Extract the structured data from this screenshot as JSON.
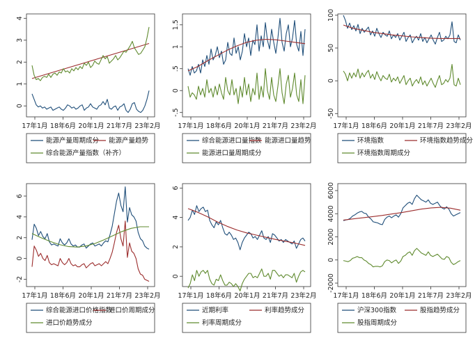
{
  "colors": {
    "navy": "#1f4e79",
    "maroon": "#9b2c2c",
    "olive": "#5f8a2e",
    "frame": "#333333"
  },
  "chart_data": [
    {
      "type": "line",
      "x_labels": [
        "17年1月",
        "18年6月",
        "20年1月",
        "21年7月",
        "23年2月"
      ],
      "ylim": [
        -0.5,
        4.2
      ],
      "yticks": [
        "0",
        "1",
        "2",
        "3",
        "4"
      ],
      "legend": [
        "能源产量周期成分",
        "能源产量趋势",
        "综合能源产量指数（补齐）"
      ],
      "series": [
        {
          "name": "能源产量周期成分",
          "color": "navy",
          "values": [
            0.55,
            0.3,
            0.05,
            -0.05,
            0.0,
            -0.1,
            -0.05,
            -0.15,
            -0.1,
            -0.05,
            -0.2,
            -0.15,
            -0.1,
            -0.05,
            -0.15,
            -0.2,
            -0.1,
            0.05,
            0.0,
            -0.1,
            -0.05,
            -0.15,
            -0.1,
            0.0,
            0.05,
            -0.2,
            -0.1,
            -0.05,
            0.1,
            -0.05,
            -0.1,
            -0.15,
            0.0,
            0.05,
            0.2,
            0.05,
            0.3,
            -0.1,
            -0.15,
            -0.05,
            0.0,
            -0.2,
            -0.05,
            0.0,
            0.1,
            -0.2,
            -0.3,
            -0.15,
            0.1,
            0.15,
            -0.15,
            -0.25,
            -0.3,
            -0.2,
            0.0,
            0.3,
            0.7
          ]
        },
        {
          "name": "能源产量趋势",
          "color": "maroon",
          "values": [
            1.25,
            2.85
          ]
        },
        {
          "name": "综合能源产量指数（补齐）",
          "color": "olive",
          "values": [
            1.85,
            1.4,
            1.2,
            1.25,
            1.15,
            1.3,
            1.35,
            1.3,
            1.45,
            1.3,
            1.45,
            1.5,
            1.4,
            1.55,
            1.5,
            1.7,
            1.55,
            1.6,
            1.5,
            1.7,
            1.6,
            1.75,
            1.65,
            1.8,
            1.7,
            1.95,
            1.85,
            2.0,
            1.75,
            1.85,
            2.05,
            1.95,
            1.9,
            2.1,
            2.3,
            2.15,
            2.25,
            1.95,
            2.05,
            2.15,
            2.3,
            2.1,
            2.2,
            2.35,
            2.5,
            2.45,
            2.6,
            2.75,
            2.95,
            2.65,
            2.5,
            2.35,
            2.4,
            2.55,
            2.7,
            3.1,
            3.6
          ]
        }
      ]
    },
    {
      "type": "line",
      "x_labels": [
        "17年1月",
        "18年6月",
        "20年1月",
        "21年7月",
        "23年2月"
      ],
      "ylim": [
        -0.6,
        1.75
      ],
      "yticks": [
        "-.5",
        "0",
        ".5",
        "1",
        "1.5"
      ],
      "legend": [
        "综合能源进口量指数",
        "能源进口量趋势",
        "能源进口量周期成分"
      ],
      "series": [
        {
          "name": "综合能源进口量指数",
          "color": "navy",
          "values": [
            0.5,
            0.35,
            0.55,
            0.4,
            0.45,
            0.6,
            0.4,
            0.7,
            0.55,
            0.8,
            0.6,
            0.95,
            0.7,
            0.8,
            1.0,
            0.75,
            0.9,
            0.6,
            0.7,
            1.1,
            0.85,
            0.8,
            1.2,
            0.85,
            1.0,
            0.7,
            0.9,
            1.3,
            1.0,
            1.2,
            0.8,
            1.15,
            1.05,
            1.5,
            0.9,
            1.25,
            1.0,
            1.55,
            1.15,
            0.95,
            1.4,
            1.1,
            0.85,
            1.2,
            1.65,
            1.1,
            0.9,
            1.3,
            1.5,
            1.0,
            1.2,
            1.6,
            1.05,
            0.9,
            1.35,
            0.8,
            1.4
          ]
        },
        {
          "name": "能源进口量趋势",
          "color": "maroon",
          "values": [
            0.45,
            0.55,
            0.68,
            0.8,
            0.92,
            1.02,
            1.1,
            1.15,
            1.17,
            1.16,
            1.13,
            1.1,
            1.07
          ]
        },
        {
          "name": "能源进口量周期成分",
          "color": "olive",
          "values": [
            0.1,
            -0.15,
            -0.05,
            -0.1,
            -0.2,
            0.1,
            -0.1,
            0.05,
            -0.15,
            0.25,
            -0.05,
            0.05,
            -0.15,
            0.1,
            -0.1,
            0.15,
            -0.05,
            -0.2,
            0.3,
            0.0,
            -0.1,
            0.25,
            -0.1,
            0.05,
            -0.3,
            0.1,
            -0.15,
            0.3,
            -0.1,
            0.15,
            -0.25,
            0.05,
            -0.1,
            0.4,
            -0.2,
            0.1,
            -0.15,
            0.5,
            0.0,
            -0.2,
            0.3,
            -0.1,
            -0.25,
            0.1,
            0.5,
            -0.05,
            -0.3,
            0.15,
            0.35,
            -0.15,
            0.05,
            0.4,
            -0.1,
            -0.25,
            0.25,
            -0.3,
            0.35
          ]
        }
      ]
    },
    {
      "type": "line",
      "x_labels": [
        "17年1月",
        "18年6月",
        "20年1月",
        "21年7月",
        "23年2月"
      ],
      "ylim": [
        -55,
        102
      ],
      "yticks": [
        "-50",
        "0",
        "50",
        "100"
      ],
      "legend": [
        "环境指数",
        "环境指数趋势成分",
        "环境指数周期成分"
      ],
      "series": [
        {
          "name": "环境指数",
          "color": "navy",
          "values": [
            100,
            92,
            80,
            88,
            78,
            84,
            76,
            86,
            72,
            80,
            74,
            78,
            82,
            70,
            76,
            68,
            80,
            72,
            66,
            74,
            70,
            68,
            76,
            64,
            70,
            66,
            72,
            62,
            68,
            74,
            60,
            66,
            70,
            58,
            64,
            68,
            62,
            72,
            60,
            66,
            58,
            64,
            70,
            62,
            56,
            66,
            74,
            60,
            62,
            68,
            64,
            70,
            90,
            60,
            58,
            70,
            62
          ]
        },
        {
          "name": "环境指数趋势成分",
          "color": "maroon",
          "values": [
            85,
            80,
            77,
            74,
            72,
            70,
            68.5,
            67,
            66,
            65,
            64.5,
            64.5,
            64.5
          ]
        },
        {
          "name": "环境指数周期成分",
          "color": "olive",
          "values": [
            15,
            10,
            0,
            12,
            4,
            12,
            6,
            18,
            4,
            12,
            6,
            12,
            16,
            4,
            10,
            2,
            14,
            6,
            0,
            8,
            4,
            2,
            10,
            -2,
            4,
            0,
            6,
            -4,
            2,
            8,
            -6,
            0,
            4,
            -8,
            -2,
            2,
            -4,
            6,
            -6,
            0,
            -8,
            -2,
            4,
            -4,
            -10,
            0,
            8,
            -6,
            -4,
            2,
            -2,
            4,
            25,
            -6,
            -8,
            4,
            -6
          ]
        }
      ]
    },
    {
      "type": "line",
      "x_labels": [
        "17年1月",
        "18年6月",
        "20年1月",
        "21年7月",
        "23年2月"
      ],
      "ylim": [
        -2.7,
        7.2
      ],
      "yticks": [
        "-2",
        "0",
        "2",
        "4",
        "6"
      ],
      "legend": [
        "综合能源进口价格指数",
        "进口价周期成分",
        "进口价趋势成分"
      ],
      "series": [
        {
          "name": "综合能源进口价格指数",
          "color": "navy",
          "values": [
            1.8,
            3.3,
            2.9,
            2.2,
            2.6,
            2.1,
            1.9,
            2.4,
            1.6,
            1.3,
            1.4,
            1.3,
            1.2,
            1.9,
            1.5,
            1.3,
            1.5,
            1.9,
            1.4,
            1.2,
            1.3,
            1.1,
            1.1,
            1.3,
            1.4,
            1.0,
            1.2,
            1.4,
            1.5,
            1.2,
            1.3,
            1.4,
            1.2,
            1.5,
            1.7,
            1.6,
            2.3,
            3.1,
            4.3,
            5.5,
            6.3,
            5.1,
            4.5,
            6.9,
            3.5,
            4.9,
            4.2,
            4.0,
            3.6,
            2.5,
            1.9,
            1.7,
            1.2,
            1.0,
            0.9
          ]
        },
        {
          "name": "进口价周期成分",
          "color": "maroon",
          "values": [
            -0.8,
            1.2,
            0.8,
            0.2,
            0.5,
            0.0,
            -0.2,
            0.3,
            -0.4,
            -0.6,
            -0.5,
            -0.6,
            -0.7,
            0.0,
            -0.4,
            -0.6,
            -0.4,
            0.0,
            -0.5,
            -0.7,
            -0.6,
            -0.8,
            -0.8,
            -0.6,
            -0.5,
            -0.9,
            -0.7,
            -0.5,
            -0.4,
            -0.7,
            -0.6,
            -0.5,
            -0.7,
            -0.5,
            -0.3,
            -0.5,
            0.0,
            0.6,
            1.5,
            2.5,
            3.2,
            1.9,
            1.2,
            3.6,
            0.1,
            1.5,
            0.7,
            0.5,
            0.0,
            -1.0,
            -1.5,
            -1.6,
            -2.0,
            -2.1,
            -2.2
          ]
        },
        {
          "name": "进口价趋势成分",
          "color": "olive",
          "values": [
            2.4,
            2.0,
            1.65,
            1.35,
            1.15,
            1.1,
            1.2,
            1.45,
            1.8,
            2.2,
            2.6,
            2.9,
            3.05,
            3.05
          ]
        }
      ]
    },
    {
      "type": "line",
      "x_labels": [
        "17年1月",
        "18年6月",
        "20年1月",
        "21年7月",
        "23年2月"
      ],
      "ylim": [
        -0.7,
        6.3
      ],
      "yticks": [
        "0",
        "2",
        "4",
        "6"
      ],
      "legend": [
        "近期利率",
        "利率趋势成分",
        "利率周期成分"
      ],
      "series": [
        {
          "name": "近期利率",
          "color": "navy",
          "values": [
            3.8,
            4.0,
            4.5,
            4.2,
            4.8,
            4.4,
            4.6,
            4.7,
            4.4,
            4.5,
            3.8,
            3.5,
            3.3,
            3.7,
            3.5,
            3.8,
            3.3,
            2.9,
            2.8,
            3.0,
            2.8,
            2.5,
            2.6,
            2.3,
            1.8,
            2.3,
            2.6,
            2.8,
            3.0,
            2.9,
            2.6,
            2.7,
            2.5,
            2.8,
            3.1,
            2.6,
            2.5,
            2.7,
            2.3,
            2.9,
            2.8,
            2.6,
            2.4,
            2.5,
            2.3,
            2.5,
            2.4,
            2.3,
            2.2,
            2.4,
            1.9,
            2.2,
            2.5,
            2.6,
            2.4
          ]
        },
        {
          "name": "利率趋势成分",
          "color": "maroon",
          "values": [
            4.6,
            4.35,
            4.05,
            3.7,
            3.4,
            3.15,
            2.95,
            2.8,
            2.65,
            2.5,
            2.38,
            2.25,
            2.1
          ]
        },
        {
          "name": "利率周期成分",
          "color": "olive",
          "values": [
            -0.8,
            -0.5,
            0.1,
            -0.3,
            0.4,
            0.0,
            0.3,
            0.4,
            0.2,
            0.4,
            -0.2,
            -0.5,
            -0.6,
            -0.2,
            -0.3,
            0.1,
            -0.3,
            -0.6,
            -0.6,
            -0.4,
            -0.5,
            -0.7,
            -0.5,
            -0.7,
            -1.0,
            -0.5,
            -0.2,
            0.0,
            0.2,
            0.2,
            -0.1,
            0.0,
            -0.1,
            0.2,
            0.5,
            0.0,
            0.0,
            0.2,
            -0.2,
            0.4,
            0.4,
            0.2,
            0.0,
            0.1,
            -0.1,
            0.1,
            0.1,
            0.0,
            -0.1,
            0.2,
            -0.4,
            0.0,
            0.3,
            0.4,
            0.3
          ]
        }
      ]
    },
    {
      "type": "line",
      "x_labels": [
        "17年1月",
        "18年6月",
        "20年1月",
        "21年7月",
        "23年2月"
      ],
      "ylim": [
        -2300,
        6600
      ],
      "yticks": [
        "-2000",
        "0",
        "2000",
        "4000",
        "6000"
      ],
      "legend": [
        "沪深300指数",
        "股指趋势成分",
        "股指周期成分"
      ],
      "series": [
        {
          "name": "沪深300指数",
          "color": "navy",
          "values": [
            3400,
            3450,
            3500,
            3600,
            3800,
            3900,
            4050,
            4150,
            4200,
            4050,
            4000,
            3700,
            3550,
            3300,
            3250,
            3200,
            3100,
            3050,
            3500,
            3700,
            3800,
            3650,
            3800,
            3900,
            3700,
            4000,
            4500,
            4700,
            4900,
            5000,
            4800,
            5300,
            5600,
            5400,
            5200,
            5100,
            5000,
            5200,
            4900,
            4800,
            4900,
            5000,
            4700,
            4500,
            4400,
            4600,
            4400,
            4000,
            3800,
            3900,
            4000,
            4100
          ]
        },
        {
          "name": "股指趋势成分",
          "color": "maroon",
          "values": [
            3450,
            3550,
            3650,
            3750,
            3850,
            3980,
            4100,
            4250,
            4400,
            4500,
            4550,
            4480,
            4300
          ]
        },
        {
          "name": "股指周期成分",
          "color": "olive",
          "values": [
            -50,
            -100,
            -150,
            -50,
            150,
            200,
            300,
            200,
            200,
            0,
            -100,
            -300,
            -400,
            -600,
            -550,
            -550,
            -600,
            -500,
            -150,
            0,
            -50,
            -250,
            -100,
            0,
            -300,
            -100,
            300,
            400,
            600,
            700,
            400,
            800,
            1000,
            800,
            600,
            500,
            400,
            700,
            400,
            300,
            400,
            500,
            300,
            100,
            50,
            300,
            200,
            -200,
            -400,
            -300,
            -150,
            -50
          ]
        }
      ]
    }
  ]
}
